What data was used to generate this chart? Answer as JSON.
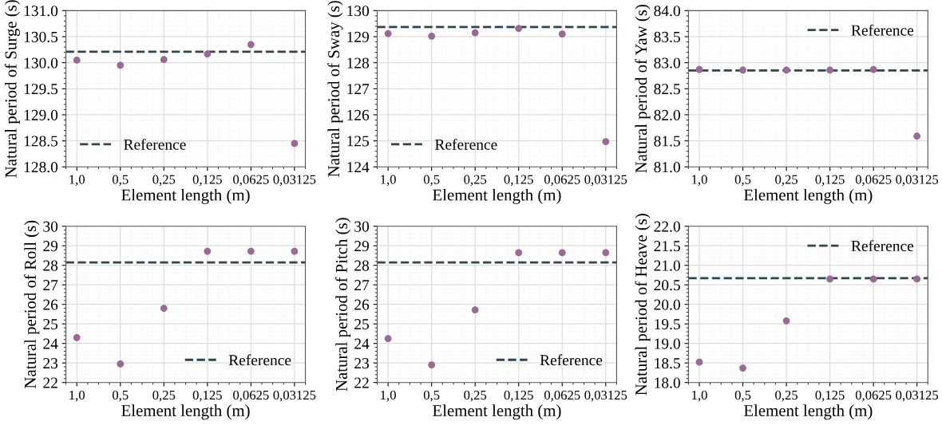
{
  "chart_data": [
    {
      "type": "scatter",
      "xlabel": "Element length (m)",
      "ylabel": "Natural period of Surge (s)",
      "categories": [
        "1,0",
        "0,5",
        "0,25",
        "0,125",
        "0,0625",
        "0,03125"
      ],
      "series": [
        {
          "color": "#9b6a94",
          "values": [
            130.05,
            129.95,
            130.06,
            130.17,
            130.35,
            128.45
          ]
        }
      ],
      "ylim": [
        128,
        131
      ],
      "yticks": [
        {
          "value": 128,
          "label": "128.0"
        },
        128.5,
        {
          "value": 129,
          "label": "129.0"
        },
        129.5,
        {
          "value": 130,
          "label": "130.0"
        },
        130.5,
        {
          "value": 131,
          "label": "131.0"
        }
      ],
      "ref_lines": [
        {
          "axis": "y",
          "value": 130.21,
          "label": "Reference",
          "color": "#34444f",
          "line_style": "dashed"
        }
      ],
      "grid": true,
      "legend": "lower left",
      "marker": "circle"
    },
    {
      "type": "scatter",
      "xlabel": "Element length (m)",
      "ylabel": "Natural period of Sway (s)",
      "categories": [
        "1,0",
        "0,5",
        "0,25",
        "0,125",
        "0,0625",
        "0,03125"
      ],
      "series": [
        {
          "color": "#9b6a94",
          "values": [
            129.12,
            129.02,
            129.15,
            129.32,
            129.1,
            124.97
          ]
        }
      ],
      "ylim": [
        124,
        130
      ],
      "yticks": [
        124,
        125,
        126,
        127,
        128,
        129,
        130
      ],
      "ref_lines": [
        {
          "axis": "y",
          "value": 129.37,
          "label": "Reference",
          "color": "#34444f",
          "line_style": "dashed"
        }
      ],
      "grid": true,
      "legend": "lower left",
      "marker": "circle"
    },
    {
      "type": "scatter",
      "xlabel": "Element length (m)",
      "ylabel": "Natural period of Yaw (s)",
      "categories": [
        "1,0",
        "0,5",
        "0,25",
        "0,125",
        "0,0625",
        "0,03125"
      ],
      "series": [
        {
          "color": "#9b6a94",
          "values": [
            82.87,
            82.86,
            82.86,
            82.86,
            82.87,
            81.59
          ]
        }
      ],
      "ylim": [
        81,
        84
      ],
      "yticks": [
        {
          "value": 81,
          "label": "81.0"
        },
        81.5,
        {
          "value": 82,
          "label": "82.0"
        },
        82.5,
        {
          "value": 83,
          "label": "83.0"
        },
        83.5,
        {
          "value": 84,
          "label": "84.0"
        }
      ],
      "ref_lines": [
        {
          "axis": "y",
          "value": 82.85,
          "label": "Reference",
          "color": "#34444f",
          "line_style": "dashed"
        }
      ],
      "grid": true,
      "legend": "upper right",
      "marker": "circle"
    },
    {
      "type": "scatter",
      "xlabel": "Element length (m)",
      "ylabel": "Natural period of Roll (s)",
      "categories": [
        "1,0",
        "0,5",
        "0,25",
        "0,125",
        "0,0625",
        "0,03125"
      ],
      "series": [
        {
          "color": "#9b6a94",
          "values": [
            24.3,
            22.95,
            25.8,
            28.72,
            28.72,
            28.72
          ]
        }
      ],
      "ylim": [
        22,
        30
      ],
      "yticks": [
        22,
        23,
        24,
        25,
        26,
        27,
        28,
        29,
        30
      ],
      "ref_lines": [
        {
          "axis": "y",
          "value": 28.15,
          "label": "Reference",
          "color": "#34444f",
          "line_style": "dashed"
        }
      ],
      "grid": true,
      "legend": "lower right",
      "marker": "circle"
    },
    {
      "type": "scatter",
      "xlabel": "Element length (m)",
      "ylabel": "Natural period of Pitch (s)",
      "categories": [
        "1,0",
        "0,5",
        "0,25",
        "0,125",
        "0,0625",
        "0,03125"
      ],
      "series": [
        {
          "color": "#9b6a94",
          "values": [
            24.25,
            22.9,
            25.72,
            28.65,
            28.65,
            28.65
          ]
        }
      ],
      "ylim": [
        22,
        30
      ],
      "yticks": [
        22,
        23,
        24,
        25,
        26,
        27,
        28,
        29,
        30
      ],
      "ref_lines": [
        {
          "axis": "y",
          "value": 28.15,
          "label": "Reference",
          "color": "#34444f",
          "line_style": "dashed"
        }
      ],
      "grid": true,
      "legend": "lower right",
      "marker": "circle"
    },
    {
      "type": "scatter",
      "xlabel": "Element length (m)",
      "ylabel": "Natural period of Heave (s)",
      "categories": [
        "1,0",
        "0,5",
        "0,25",
        "0,125",
        "0,0625",
        "0,03125"
      ],
      "series": [
        {
          "color": "#9b6a94",
          "values": [
            18.52,
            18.37,
            19.58,
            20.65,
            20.65,
            20.65
          ]
        }
      ],
      "ylim": [
        18,
        22
      ],
      "yticks": [
        {
          "value": 18,
          "label": "18.0"
        },
        18.5,
        {
          "value": 19,
          "label": "19.0"
        },
        19.5,
        {
          "value": 20,
          "label": "20.0"
        },
        20.5,
        {
          "value": 21,
          "label": "21.0"
        },
        21.5,
        {
          "value": 22,
          "label": "22.0"
        }
      ],
      "ref_lines": [
        {
          "axis": "y",
          "value": 20.67,
          "label": "Reference",
          "color": "#34444f",
          "line_style": "dashed"
        }
      ],
      "grid": true,
      "legend": "upper right",
      "marker": "circle"
    }
  ]
}
